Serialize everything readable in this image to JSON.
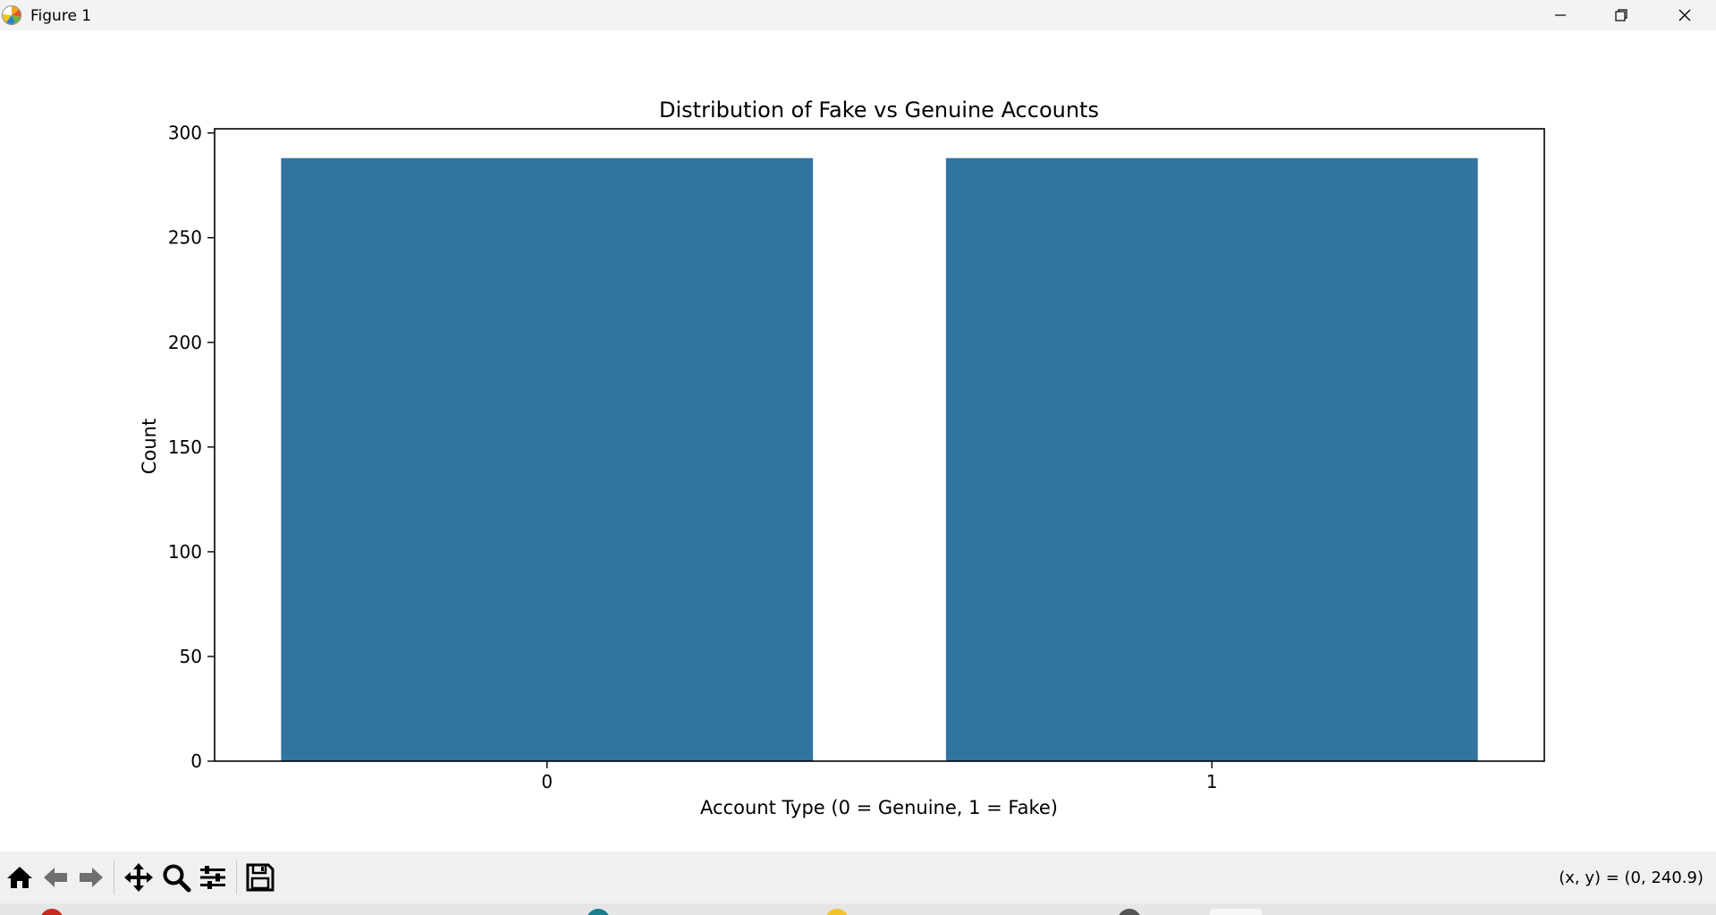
{
  "window": {
    "title": "Figure 1",
    "icons": {
      "app": "matplotlib-logo-icon",
      "minimize": "minimize-icon",
      "maximize": "restore-icon",
      "close": "close-icon"
    }
  },
  "toolbar": {
    "tools": [
      {
        "name": "home-icon"
      },
      {
        "name": "back-arrow-icon"
      },
      {
        "name": "forward-arrow-icon"
      },
      {
        "name": "pan-move-icon"
      },
      {
        "name": "zoom-magnifier-icon"
      },
      {
        "name": "configure-subplots-icon"
      },
      {
        "name": "save-floppy-icon"
      }
    ],
    "coords": "(x, y) = (0, 240.9)"
  },
  "chart_data": {
    "type": "bar",
    "title": "Distribution of Fake vs Genuine Accounts",
    "xlabel": "Account Type (0 = Genuine, 1 = Fake)",
    "ylabel": "Count",
    "categories": [
      "0",
      "1"
    ],
    "values": [
      288,
      288
    ],
    "ylim": [
      0,
      302
    ],
    "yticks": [
      0,
      50,
      100,
      150,
      200,
      250,
      300
    ],
    "grid": false,
    "color": "#3274a1"
  }
}
